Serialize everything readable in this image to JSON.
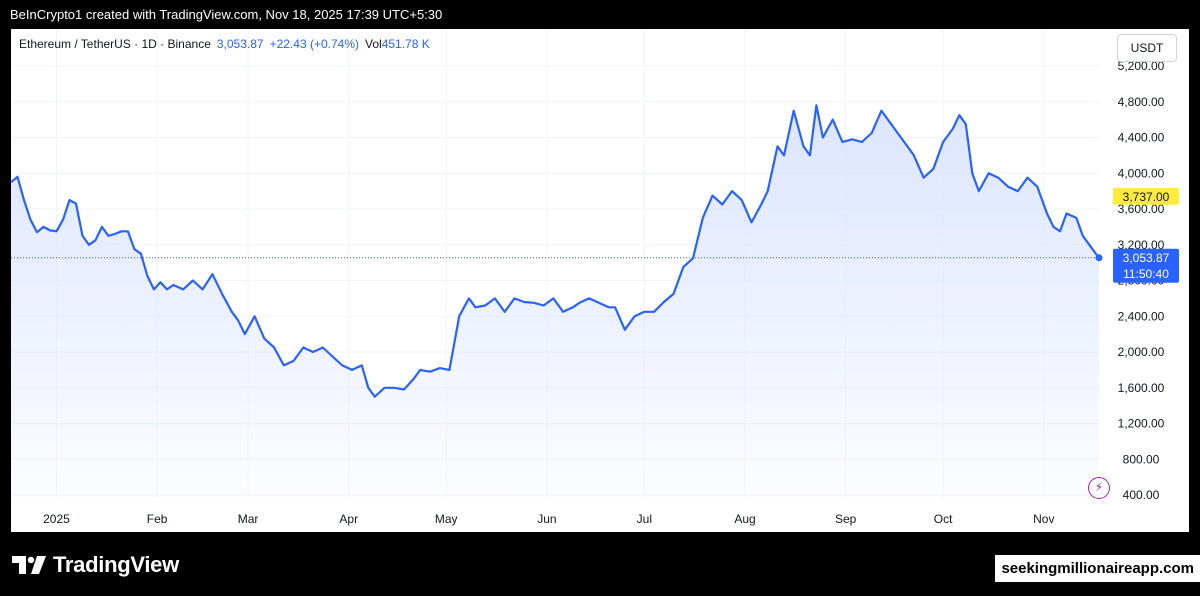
{
  "header": {
    "credit": "BeInCrypto1 created with TradingView.com, Nov 18, 2025 17:39 UTC+5:30"
  },
  "legend": {
    "symbol": "Ethereum / TetherUS · 1D · Binance",
    "price": "3,053.87",
    "change": "+22.43 (+0.74%)",
    "vol_label": "Vol",
    "vol_value": "451.78 K"
  },
  "currency": "USDT",
  "footer": {
    "brand": "TradingView",
    "watermark": "seekingmillionaireapp.com"
  },
  "colors": {
    "line": "#2962ff",
    "fill_top": "#dbe4ff",
    "highlight": "#ffeb3b",
    "current_label": "#2962ff",
    "accent_icon": "#9c27b0"
  },
  "icons": [
    "tradingview-logo-icon",
    "lightning-icon"
  ],
  "chart_data": {
    "type": "area",
    "title": "",
    "xlabel": "",
    "ylabel": "",
    "y_axis_position": "right",
    "ylim": [
      400,
      5200
    ],
    "y_ticks": [
      400,
      800,
      1200,
      1600,
      2000,
      2400,
      2800,
      3200,
      3600,
      4000,
      4400,
      4800,
      5200
    ],
    "y_tick_labels": [
      "400.00",
      "800.00",
      "1,200.00",
      "1,600.00",
      "2,000.00",
      "2,400.00",
      "2,800.00",
      "3,200.00",
      "3,600.00",
      "4,000.00",
      "4,400.00",
      "4,800.00",
      "5,200.00"
    ],
    "x_ticks": [
      {
        "label": "2025",
        "date": "2025-01-01"
      },
      {
        "label": "Feb",
        "date": "2025-02-01"
      },
      {
        "label": "Mar",
        "date": "2025-03-01"
      },
      {
        "label": "Apr",
        "date": "2025-04-01"
      },
      {
        "label": "May",
        "date": "2025-05-01"
      },
      {
        "label": "Jun",
        "date": "2025-06-01"
      },
      {
        "label": "Jul",
        "date": "2025-07-01"
      },
      {
        "label": "Aug",
        "date": "2025-08-01"
      },
      {
        "label": "Sep",
        "date": "2025-09-01"
      },
      {
        "label": "Oct",
        "date": "2025-10-01"
      },
      {
        "label": "Nov",
        "date": "2025-11-01"
      }
    ],
    "price_labels": [
      {
        "value": 3737.0,
        "text": "3,737.00",
        "style": "highlight"
      },
      {
        "value": 3053.87,
        "text": "3,053.87",
        "countdown": "11:50:40",
        "style": "current"
      }
    ],
    "current_price_line": 3053.87,
    "grid": true,
    "series": [
      {
        "x": [
          "2024-12-18",
          "2024-12-20",
          "2024-12-22",
          "2024-12-24",
          "2024-12-26",
          "2024-12-28",
          "2024-12-30",
          "2025-01-01",
          "2025-01-03",
          "2025-01-05",
          "2025-01-07",
          "2025-01-09",
          "2025-01-11",
          "2025-01-13",
          "2025-01-15",
          "2025-01-17",
          "2025-01-19",
          "2025-01-21",
          "2025-01-23",
          "2025-01-25",
          "2025-01-27",
          "2025-01-29",
          "2025-01-31",
          "2025-02-02",
          "2025-02-04",
          "2025-02-06",
          "2025-02-09",
          "2025-02-12",
          "2025-02-15",
          "2025-02-18",
          "2025-02-21",
          "2025-02-24",
          "2025-02-26",
          "2025-02-28",
          "2025-03-03",
          "2025-03-06",
          "2025-03-09",
          "2025-03-12",
          "2025-03-15",
          "2025-03-18",
          "2025-03-21",
          "2025-03-24",
          "2025-03-27",
          "2025-03-30",
          "2025-04-02",
          "2025-04-05",
          "2025-04-07",
          "2025-04-09",
          "2025-04-12",
          "2025-04-15",
          "2025-04-18",
          "2025-04-21",
          "2025-04-23",
          "2025-04-26",
          "2025-04-29",
          "2025-05-02",
          "2025-05-05",
          "2025-05-08",
          "2025-05-10",
          "2025-05-13",
          "2025-05-16",
          "2025-05-19",
          "2025-05-22",
          "2025-05-25",
          "2025-05-28",
          "2025-05-31",
          "2025-06-03",
          "2025-06-06",
          "2025-06-09",
          "2025-06-11",
          "2025-06-14",
          "2025-06-17",
          "2025-06-20",
          "2025-06-22",
          "2025-06-25",
          "2025-06-28",
          "2025-07-01",
          "2025-07-04",
          "2025-07-07",
          "2025-07-10",
          "2025-07-13",
          "2025-07-16",
          "2025-07-19",
          "2025-07-22",
          "2025-07-25",
          "2025-07-28",
          "2025-07-31",
          "2025-08-03",
          "2025-08-06",
          "2025-08-08",
          "2025-08-11",
          "2025-08-13",
          "2025-08-16",
          "2025-08-19",
          "2025-08-21",
          "2025-08-23",
          "2025-08-25",
          "2025-08-28",
          "2025-08-31",
          "2025-09-03",
          "2025-09-06",
          "2025-09-09",
          "2025-09-12",
          "2025-09-14",
          "2025-09-17",
          "2025-09-20",
          "2025-09-22",
          "2025-09-25",
          "2025-09-28",
          "2025-10-01",
          "2025-10-04",
          "2025-10-06",
          "2025-10-08",
          "2025-10-10",
          "2025-10-12",
          "2025-10-15",
          "2025-10-18",
          "2025-10-21",
          "2025-10-24",
          "2025-10-27",
          "2025-10-30",
          "2025-11-02",
          "2025-11-04",
          "2025-11-06",
          "2025-11-08",
          "2025-11-11",
          "2025-11-13",
          "2025-11-15",
          "2025-11-17",
          "2025-11-18"
        ],
        "values": [
          3900,
          3960,
          3700,
          3480,
          3340,
          3400,
          3360,
          3350,
          3480,
          3700,
          3660,
          3300,
          3200,
          3250,
          3400,
          3300,
          3320,
          3350,
          3350,
          3150,
          3100,
          2850,
          2700,
          2780,
          2700,
          2750,
          2700,
          2800,
          2700,
          2870,
          2650,
          2450,
          2350,
          2200,
          2400,
          2150,
          2050,
          1850,
          1900,
          2050,
          2000,
          2050,
          1950,
          1850,
          1800,
          1850,
          1600,
          1500,
          1600,
          1600,
          1580,
          1700,
          1800,
          1780,
          1820,
          1800,
          2400,
          2600,
          2500,
          2520,
          2600,
          2450,
          2600,
          2560,
          2550,
          2520,
          2600,
          2450,
          2500,
          2550,
          2600,
          2550,
          2500,
          2500,
          2250,
          2400,
          2450,
          2450,
          2560,
          2650,
          2950,
          3050,
          3500,
          3750,
          3650,
          3800,
          3700,
          3450,
          3650,
          3800,
          4300,
          4200,
          4700,
          4300,
          4200,
          4760,
          4400,
          4600,
          4350,
          4380,
          4350,
          4450,
          4700,
          4600,
          4450,
          4300,
          4200,
          3950,
          4050,
          4350,
          4500,
          4650,
          4550,
          4000,
          3800,
          4000,
          3950,
          3850,
          3800,
          3950,
          3850,
          3550,
          3400,
          3350,
          3550,
          3500,
          3300,
          3200,
          3100,
          3053.87
        ]
      }
    ]
  }
}
